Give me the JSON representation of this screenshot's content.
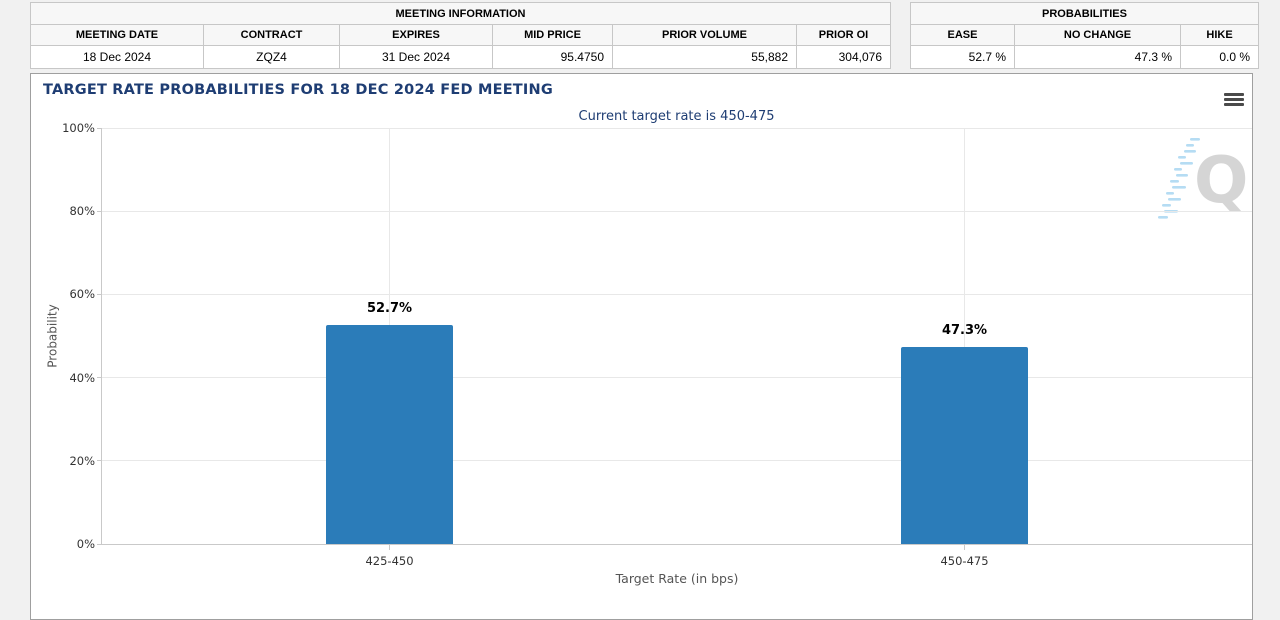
{
  "meeting_information": {
    "title": "MEETING INFORMATION",
    "columns": [
      "MEETING DATE",
      "CONTRACT",
      "EXPIRES",
      "MID PRICE",
      "PRIOR VOLUME",
      "PRIOR OI"
    ],
    "values": [
      "18 Dec 2024",
      "ZQZ4",
      "31 Dec 2024",
      "95.4750",
      "55,882",
      "304,076"
    ]
  },
  "probabilities": {
    "title": "PROBABILITIES",
    "columns": [
      "EASE",
      "NO CHANGE",
      "HIKE"
    ],
    "values": [
      "52.7 %",
      "47.3 %",
      "0.0 %"
    ]
  },
  "chart_data": {
    "type": "bar",
    "title": "TARGET RATE PROBABILITIES FOR 18 DEC 2024 FED MEETING",
    "subtitle": "Current target rate is 450-475",
    "categories": [
      "425-450",
      "450-475"
    ],
    "values": [
      52.7,
      47.3
    ],
    "data_labels": [
      "52.7%",
      "47.3%"
    ],
    "xlabel": "Target Rate (in bps)",
    "ylabel": "Probability",
    "ylim": [
      0,
      100
    ],
    "ytick_step": 20,
    "ytick_labels": [
      "0%",
      "20%",
      "40%",
      "60%",
      "80%",
      "100%"
    ],
    "grid": true,
    "legend": "none",
    "bar_color": "#2b7cb9"
  },
  "icons": {
    "menu": "hamburger-menu-icon",
    "watermark_letter": "Q"
  },
  "colors": {
    "title_navy": "#1e3d73",
    "bar_blue": "#2b7cb9",
    "page_background": "#f1f1f1",
    "panel_background": "#ffffff",
    "gridline": "#e8e8e8"
  }
}
